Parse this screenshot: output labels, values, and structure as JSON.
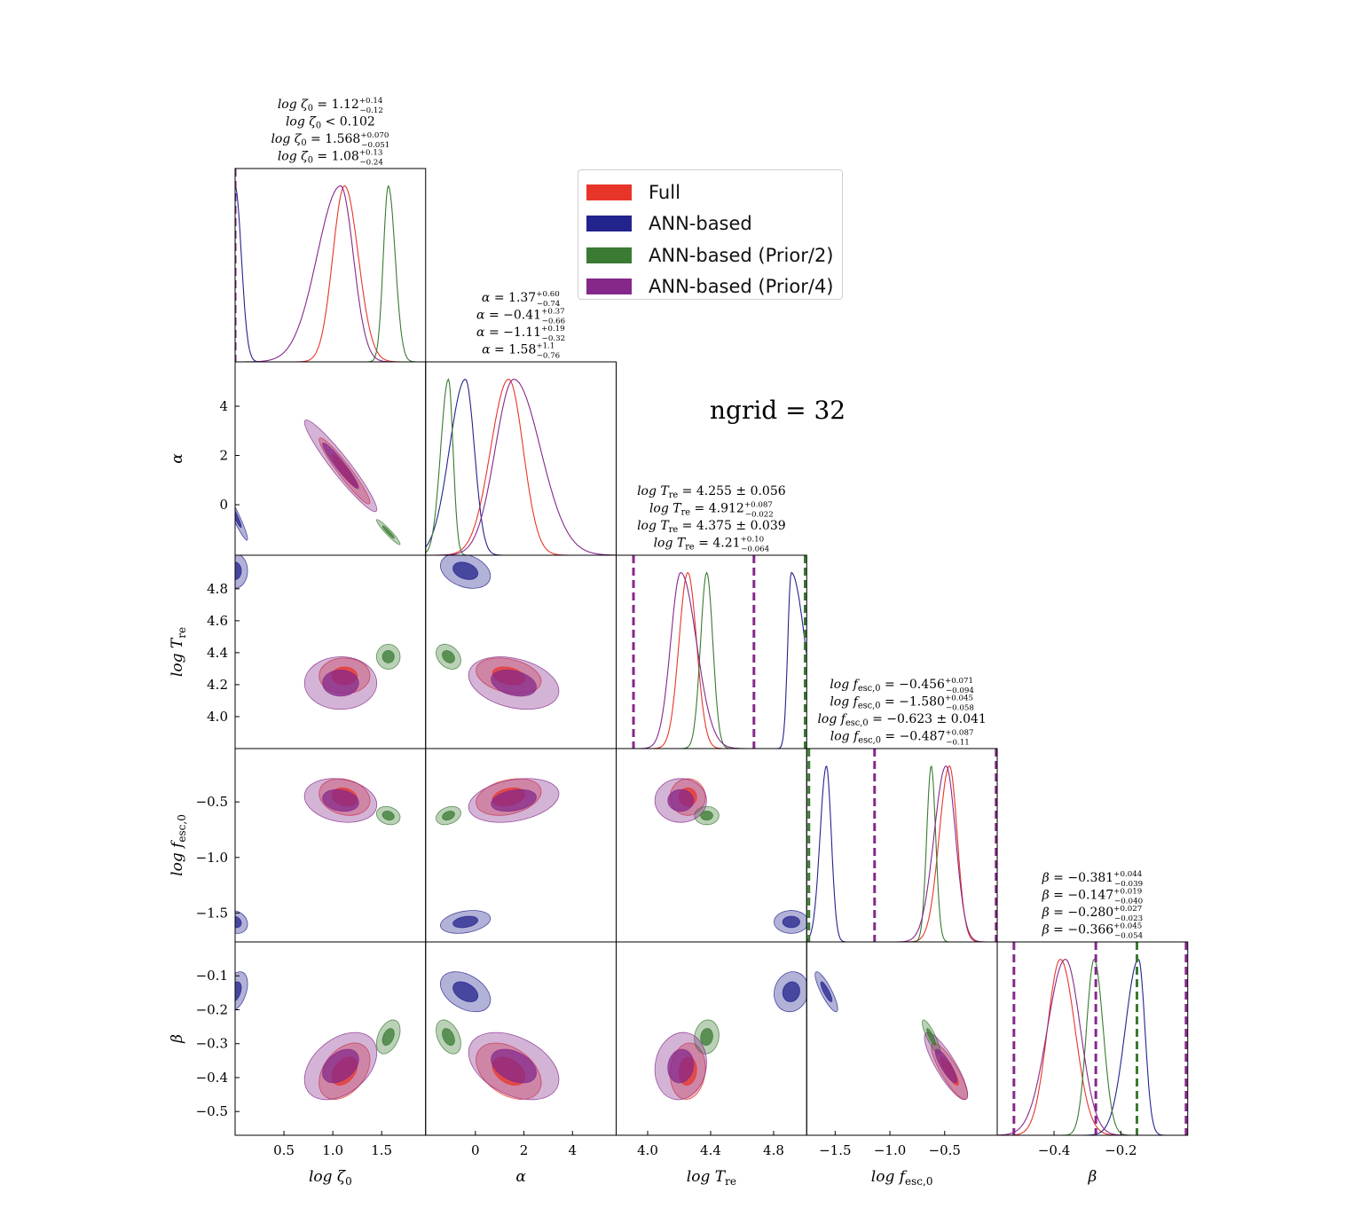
{
  "annotation": "ngrid = 32",
  "legend": [
    {
      "label": "Full",
      "color": "#e8352a"
    },
    {
      "label": "ANN-based",
      "color": "#23238e"
    },
    {
      "label": "ANN-based (Prior/2)",
      "color": "#3a7a32"
    },
    {
      "label": "ANN-based (Prior/4)",
      "color": "#85288a"
    }
  ],
  "chart_data": {
    "type": "corner",
    "parameters": [
      {
        "label": "log ζ",
        "sub": "0",
        "range": [
          0,
          1.95
        ],
        "ticks": [
          0.5,
          1.0,
          1.5
        ],
        "tick_labels": [
          "0.5",
          "1.0",
          "1.5"
        ]
      },
      {
        "label": "α",
        "sub": "",
        "range": [
          -2.05,
          5.8
        ],
        "ticks": [
          0,
          2,
          4
        ],
        "tick_labels": [
          "0",
          "2",
          "4"
        ]
      },
      {
        "label": "log T",
        "sub": "re",
        "range": [
          3.8,
          5.01
        ],
        "ticks": [
          4.0,
          4.2,
          4.4,
          4.6,
          4.8
        ],
        "tick_labels": [
          "4.0",
          "4.2",
          "4.4",
          "4.6",
          "4.8"
        ],
        "x_ticks": [
          4.0,
          4.4,
          4.8
        ]
      },
      {
        "label": "log f",
        "sub": "esc,0",
        "range": [
          -1.76,
          -0.02
        ],
        "ticks": [
          -1.5,
          -1.0,
          -0.5
        ],
        "tick_labels": [
          "−1.5",
          "−1.0",
          "−0.5"
        ]
      },
      {
        "label": "β",
        "sub": "",
        "range": [
          -0.57,
          0.0
        ],
        "ticks": [
          -0.5,
          -0.4,
          -0.3,
          -0.2,
          -0.1
        ],
        "tick_labels": [
          "−0.5",
          "−0.4",
          "−0.3",
          "−0.2",
          "−0.1"
        ],
        "x_ticks": [
          -0.4,
          -0.2
        ]
      }
    ],
    "series": [
      {
        "name": "Full",
        "color": "#e8352a",
        "stats": [
          {
            "value": 1.12,
            "plus": 0.14,
            "minus": 0.12
          },
          {
            "value": 1.37,
            "plus": 0.6,
            "minus": 0.74
          },
          {
            "value": 4.255,
            "plus": 0.056,
            "minus": 0.056
          },
          {
            "value": -0.456,
            "plus": 0.071,
            "minus": 0.094
          },
          {
            "value": -0.381,
            "plus": 0.044,
            "minus": 0.039
          }
        ]
      },
      {
        "name": "ANN-based",
        "color": "#23238e",
        "stats": [
          {
            "value": 0.0,
            "plus": 0.102,
            "minus": 0.0,
            "upper_limit": 0.102
          },
          {
            "value": -0.41,
            "plus": 0.37,
            "minus": 0.66
          },
          {
            "value": 4.912,
            "plus": 0.087,
            "minus": 0.022
          },
          {
            "value": -1.58,
            "plus": 0.045,
            "minus": 0.058
          },
          {
            "value": -0.147,
            "plus": 0.019,
            "minus": 0.04
          }
        ]
      },
      {
        "name": "ANN-based (Prior/2)",
        "color": "#3a7a32",
        "stats": [
          {
            "value": 1.568,
            "plus": 0.07,
            "minus": 0.051
          },
          {
            "value": -1.11,
            "plus": 0.19,
            "minus": 0.32
          },
          {
            "value": 4.375,
            "plus": 0.039,
            "minus": 0.039
          },
          {
            "value": -0.623,
            "plus": 0.041,
            "minus": 0.041
          },
          {
            "value": -0.28,
            "plus": 0.027,
            "minus": 0.023
          }
        ]
      },
      {
        "name": "ANN-based (Prior/4)",
        "color": "#85288a",
        "stats": [
          {
            "value": 1.08,
            "plus": 0.13,
            "minus": 0.24
          },
          {
            "value": 1.58,
            "plus": 1.1,
            "minus": 0.76
          },
          {
            "value": 4.21,
            "plus": 0.1,
            "minus": 0.064
          },
          {
            "value": -0.487,
            "plus": 0.087,
            "minus": 0.11
          },
          {
            "value": -0.366,
            "plus": 0.045,
            "minus": 0.054
          }
        ]
      }
    ],
    "titles": [
      [
        "log ζ₀ = 1.12 +0.14 −0.12",
        "log ζ₀ < 0.102",
        "log ζ₀ = 1.568 +0.070 −0.051",
        "log ζ₀ = 1.08 +0.13 −0.24"
      ],
      [
        "α = 1.37 +0.60 −0.74",
        "α = −0.41 +0.37 −0.66",
        "α = −1.11 +0.19 −0.32",
        "α = 1.58 +1.1 −0.76"
      ],
      [
        "log Tre = 4.255 ± 0.056",
        "log Tre = 4.912 +0.087 −0.022",
        "log Tre = 4.375 ± 0.039",
        "log Tre = 4.21 +0.10 −0.064"
      ],
      [
        "log fesc,0 = −0.456 +0.071 −0.094",
        "log fesc,0 = −1.580 +0.045 −0.058",
        "log fesc,0 = −0.623 ± 0.041",
        "log fesc,0 = −0.487 +0.087 −0.11"
      ],
      [
        "β = −0.381 +0.044 −0.039",
        "β = −0.147 +0.019 −0.040",
        "β = −0.280 +0.027 −0.023",
        "β = −0.366 +0.045 −0.054"
      ]
    ],
    "title_parts": [
      [
        {
          "lhs": "log ζ",
          "sub": "0",
          "rel": " = ",
          "val": "1.12",
          "plus": "+0.14",
          "minus": "−0.12"
        },
        {
          "lhs": "log ζ",
          "sub": "0",
          "rel": " < ",
          "val": "0.102"
        },
        {
          "lhs": "log ζ",
          "sub": "0",
          "rel": " = ",
          "val": "1.568",
          "plus": "+0.070",
          "minus": "−0.051"
        },
        {
          "lhs": "log ζ",
          "sub": "0",
          "rel": " = ",
          "val": "1.08",
          "plus": "+0.13",
          "minus": "−0.24"
        }
      ],
      [
        {
          "lhs": "α",
          "sub": "",
          "rel": " = ",
          "val": "1.37",
          "plus": "+0.60",
          "minus": "−0.74"
        },
        {
          "lhs": "α",
          "sub": "",
          "rel": " = ",
          "val": "−0.41",
          "plus": "+0.37",
          "minus": "−0.66"
        },
        {
          "lhs": "α",
          "sub": "",
          "rel": " = ",
          "val": "−1.11",
          "plus": "+0.19",
          "minus": "−0.32"
        },
        {
          "lhs": "α",
          "sub": "",
          "rel": " = ",
          "val": "1.58",
          "plus": "+1.1",
          "minus": "−0.76"
        }
      ],
      [
        {
          "lhs": "log T",
          "sub": "re",
          "rel": " = ",
          "val": "4.255 ± 0.056"
        },
        {
          "lhs": "log T",
          "sub": "re",
          "rel": " = ",
          "val": "4.912",
          "plus": "+0.087",
          "minus": "−0.022"
        },
        {
          "lhs": "log T",
          "sub": "re",
          "rel": " = ",
          "val": "4.375 ± 0.039"
        },
        {
          "lhs": "log T",
          "sub": "re",
          "rel": " = ",
          "val": "4.21",
          "plus": "+0.10",
          "minus": "−0.064"
        }
      ],
      [
        {
          "lhs": "log f",
          "sub": "esc,0",
          "rel": " = ",
          "val": "−0.456",
          "plus": "+0.071",
          "minus": "−0.094"
        },
        {
          "lhs": "log f",
          "sub": "esc,0",
          "rel": " = ",
          "val": "−1.580",
          "plus": "+0.045",
          "minus": "−0.058"
        },
        {
          "lhs": "log f",
          "sub": "esc,0",
          "rel": " = ",
          "val": "−0.623 ± 0.041"
        },
        {
          "lhs": "log f",
          "sub": "esc,0",
          "rel": " = ",
          "val": "−0.487",
          "plus": "+0.087",
          "minus": "−0.11"
        }
      ],
      [
        {
          "lhs": "β",
          "sub": "",
          "rel": " = ",
          "val": "−0.381",
          "plus": "+0.044",
          "minus": "−0.039"
        },
        {
          "lhs": "β",
          "sub": "",
          "rel": " = ",
          "val": "−0.147",
          "plus": "+0.019",
          "minus": "−0.040"
        },
        {
          "lhs": "β",
          "sub": "",
          "rel": " = ",
          "val": "−0.280",
          "plus": "+0.027",
          "minus": "−0.023"
        },
        {
          "lhs": "β",
          "sub": "",
          "rel": " = ",
          "val": "−0.366",
          "plus": "+0.045",
          "minus": "−0.054"
        }
      ]
    ],
    "correlations": {
      "0-1": -0.95,
      "0-2": 0.0,
      "0-3": -0.2,
      "0-4": 0.4,
      "1-2": -0.3,
      "1-3": 0.3,
      "1-4": -0.4,
      "2-3": 0.0,
      "2-4": 0.1,
      "3-4": -0.85
    },
    "prior_lines": [
      {
        "param": 0,
        "value": 0.0,
        "color": "#85288a"
      },
      {
        "param": 2,
        "value": 3.91,
        "color": "#85288a"
      },
      {
        "param": 2,
        "value": 4.675,
        "color": "#85288a"
      },
      {
        "param": 2,
        "value": 5.0,
        "color": "#3a7a32"
      },
      {
        "param": 3,
        "value": -1.74,
        "color": "#3a7a32"
      },
      {
        "param": 3,
        "value": -1.14,
        "color": "#85288a"
      },
      {
        "param": 3,
        "value": -0.03,
        "color": "#85288a"
      },
      {
        "param": 4,
        "value": -0.52,
        "color": "#85288a"
      },
      {
        "param": 4,
        "value": -0.275,
        "color": "#85288a"
      },
      {
        "param": 4,
        "value": -0.152,
        "color": "#3a7a32"
      },
      {
        "param": 4,
        "value": -0.005,
        "color": "#85288a"
      }
    ],
    "contour_levels": [
      "1σ",
      "2σ"
    ]
  }
}
